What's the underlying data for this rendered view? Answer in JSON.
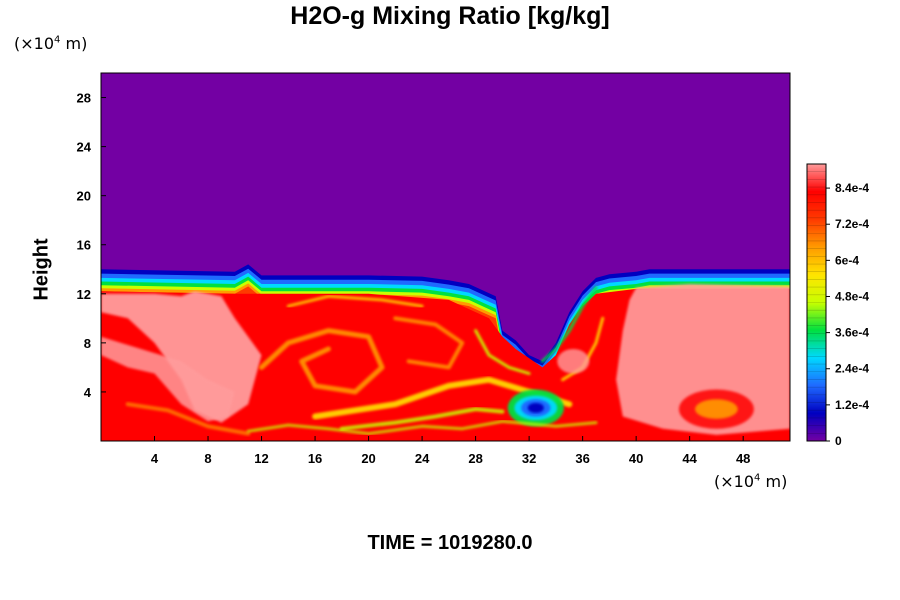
{
  "chart_data": {
    "type": "heatmap",
    "title": "H2O-g Mixing Ratio [kg/kg]",
    "ylabel": "Height",
    "y_unit": {
      "prefix": "(×10",
      "exp": "4",
      "suffix": " m)"
    },
    "x_unit": {
      "prefix": "(×10",
      "exp": "4",
      "suffix": " m)"
    },
    "xlim": [
      0,
      51.5
    ],
    "ylim": [
      0,
      30
    ],
    "x_ticks": [
      4,
      8,
      12,
      16,
      20,
      24,
      28,
      32,
      36,
      40,
      44,
      48
    ],
    "y_ticks": [
      4,
      8,
      12,
      16,
      20,
      24,
      28
    ],
    "field_summary": {
      "dry_value": 0,
      "dry_above_height": 14,
      "cloud_top_height_approx": 13
    },
    "colorbar": {
      "range": [
        0,
        0.00092
      ],
      "tick_labels": [
        "0",
        "1.2e-4",
        "2.4e-4",
        "3.6e-4",
        "4.8e-4",
        "6e-4",
        "7.2e-4",
        "8.4e-4"
      ],
      "tick_values": [
        0,
        0.00012,
        0.00024,
        0.00036,
        0.00048,
        0.0006,
        0.00072,
        0.00084
      ],
      "colors": [
        "#7300a3",
        "#0000c0",
        "#1f6aff",
        "#00d9ff",
        "#00e040",
        "#c8ff00",
        "#ffe400",
        "#ff9a00",
        "#ff3a00",
        "#ff0000",
        "#ff9c9c"
      ]
    },
    "footer": "TIME = 1019280.0",
    "grid": false
  }
}
